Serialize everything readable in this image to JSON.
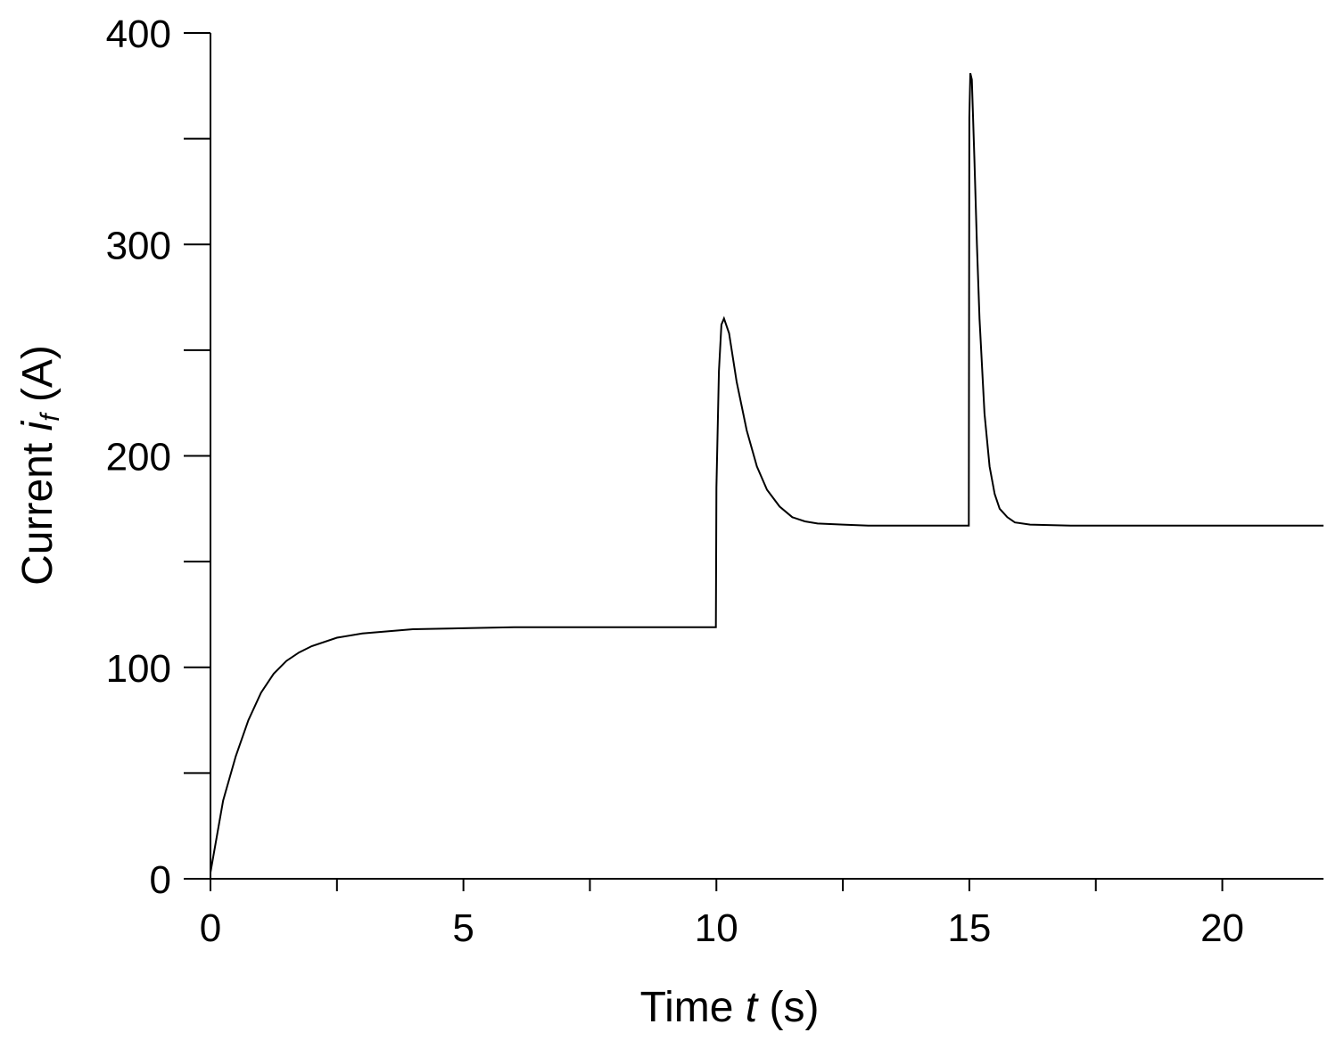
{
  "chart_data": {
    "type": "line",
    "title": "",
    "xlabel": {
      "prefix": "Time ",
      "var": "t",
      "suffix": " (s)"
    },
    "ylabel": {
      "prefix": "Current ",
      "var": "i",
      "sub": "f",
      "suffix": " (A)"
    },
    "xlim": [
      0,
      22
    ],
    "ylim": [
      0,
      400
    ],
    "x_major_ticks": [
      0,
      5,
      10,
      15,
      20
    ],
    "x_minor_ticks": [
      2.5,
      7.5,
      12.5,
      17.5
    ],
    "y_major_ticks": [
      0,
      100,
      200,
      300,
      400
    ],
    "y_minor_ticks": [
      50,
      150,
      250,
      350
    ],
    "tick_labels": {
      "x": [
        "0",
        "5",
        "10",
        "15",
        "20"
      ],
      "y": [
        "0",
        "100",
        "200",
        "300",
        "400"
      ]
    },
    "grid": false,
    "series": [
      {
        "x": [
          0,
          0.25,
          0.5,
          0.75,
          1.0,
          1.25,
          1.5,
          1.75,
          2.0,
          2.5,
          3.0,
          3.5,
          4.0,
          5.0,
          6.0,
          7.0,
          8.0,
          9.0,
          9.99,
          10.0,
          10.05,
          10.1,
          10.15,
          10.25,
          10.4,
          10.6,
          10.8,
          11.0,
          11.25,
          11.5,
          11.75,
          12.0,
          12.5,
          13.0,
          14.0,
          14.99,
          15.0,
          15.02,
          15.05,
          15.1,
          15.15,
          15.2,
          15.3,
          15.4,
          15.5,
          15.6,
          15.75,
          15.9,
          16.2,
          17.0,
          19.0,
          22.0
        ],
        "values": [
          3,
          37,
          58,
          75,
          88,
          97,
          103,
          107,
          110,
          114,
          116,
          117,
          118,
          118.5,
          119,
          119,
          119,
          119,
          119,
          185,
          240,
          262,
          265,
          258,
          235,
          212,
          195,
          184,
          176,
          171,
          169,
          168,
          167.5,
          167,
          167,
          167,
          360,
          381,
          378,
          340,
          300,
          265,
          220,
          195,
          182,
          175,
          171,
          168.5,
          167.5,
          167,
          167,
          167
        ]
      }
    ]
  }
}
